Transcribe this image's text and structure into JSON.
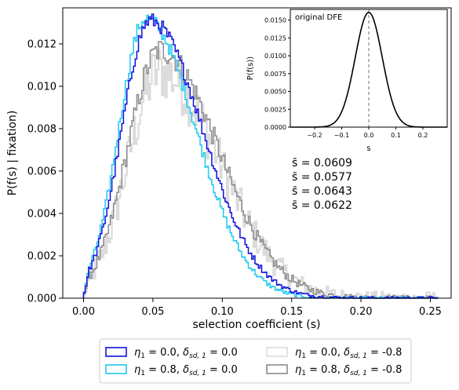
{
  "chart_data": [
    {
      "type": "histogram-step",
      "xlabel": "selection coefficient (s)",
      "ylabel": "P(f(s) | fixation)",
      "xlim": [
        -0.015,
        0.265
      ],
      "ylim": [
        0,
        0.0137
      ],
      "xticks": [
        0.0,
        0.05,
        0.1,
        0.15,
        0.2,
        0.25
      ],
      "xtick_labels": [
        "0.00",
        "0.05",
        "0.10",
        "0.15",
        "0.20",
        "0.25"
      ],
      "yticks": [
        0.0,
        0.002,
        0.004,
        0.006,
        0.008,
        0.01,
        0.012
      ],
      "ytick_labels": [
        "0.000",
        "0.002",
        "0.004",
        "0.006",
        "0.008",
        "0.010",
        "0.012"
      ],
      "grid": false,
      "legend_position": "below plot",
      "series": [
        {
          "name": "η₁ = 0.0, δsd,₁ = 0.0",
          "legend_eta": "η",
          "legend_eta_sub": "1",
          "legend_eta_val": " = 0.0, ",
          "legend_delta": "δ",
          "legend_delta_sub": "sd, 1",
          "legend_delta_val": " = 0.0",
          "color": "#1010dd",
          "mode": 0.048,
          "peak": 0.0131,
          "sigma_left": 0.0205,
          "sigma_right": 0.038,
          "noise": 0.00035,
          "mean_label": "s̄ = 0.0609"
        },
        {
          "name": "η₁ = 0.8, δsd,₁ = 0.0",
          "legend_eta": "η",
          "legend_eta_sub": "1",
          "legend_eta_val": " = 0.8, ",
          "legend_delta": "δ",
          "legend_delta_sub": "sd, 1",
          "legend_delta_val": " = 0.0",
          "color": "#1ec8f0",
          "mode": 0.045,
          "peak": 0.0132,
          "sigma_left": 0.0195,
          "sigma_right": 0.036,
          "noise": 0.00035,
          "mean_label": "s̄ = 0.0577"
        },
        {
          "name": "η₁ = 0.0, δsd,₁ = -0.8",
          "legend_eta": "η",
          "legend_eta_sub": "1",
          "legend_eta_val": " = 0.0, ",
          "legend_delta": "δ",
          "legend_delta_sub": "sd, 1",
          "legend_delta_val": " = -0.8",
          "color": "#dcdcdc",
          "mode": 0.055,
          "peak": 0.0107,
          "sigma_left": 0.023,
          "sigma_right": 0.043,
          "noise": 0.0014,
          "mean_label": "s̄ = 0.0643"
        },
        {
          "name": "η₁ = 0.8, δsd,₁ = -0.8",
          "legend_eta": "η",
          "legend_eta_sub": "1",
          "legend_eta_val": " = 0.8, ",
          "legend_delta": "δ",
          "legend_delta_sub": "sd, 1",
          "legend_delta_val": " = -0.8",
          "color": "#8c8c8c",
          "mode": 0.055,
          "peak": 0.0117,
          "sigma_left": 0.023,
          "sigma_right": 0.042,
          "noise": 0.0006,
          "mean_label": "s̄ = 0.0622"
        }
      ]
    },
    {
      "type": "line",
      "title": "original DFE",
      "xlabel": "s",
      "ylabel": "P(f(s))",
      "xlim": [
        -0.29,
        0.29
      ],
      "ylim": [
        0,
        0.0165
      ],
      "xticks": [
        -0.2,
        -0.1,
        0.0,
        0.1,
        0.2
      ],
      "xtick_labels": [
        "−0.2",
        "−0.1",
        "0.0",
        "0.1",
        "0.2"
      ],
      "yticks": [
        0.0,
        0.0025,
        0.005,
        0.0075,
        0.01,
        0.0125,
        0.015
      ],
      "ytick_labels": [
        "0.0000",
        "0.0025",
        "0.0050",
        "0.0075",
        "0.0100",
        "0.0125",
        "0.0150"
      ],
      "series": [
        {
          "distribution": "normal",
          "mean": 0.0,
          "sd": 0.05,
          "peak": 0.01608,
          "color": "#000000"
        }
      ],
      "reference_line": {
        "x": 0.0,
        "style": "dashed",
        "color": "#888888"
      }
    }
  ]
}
